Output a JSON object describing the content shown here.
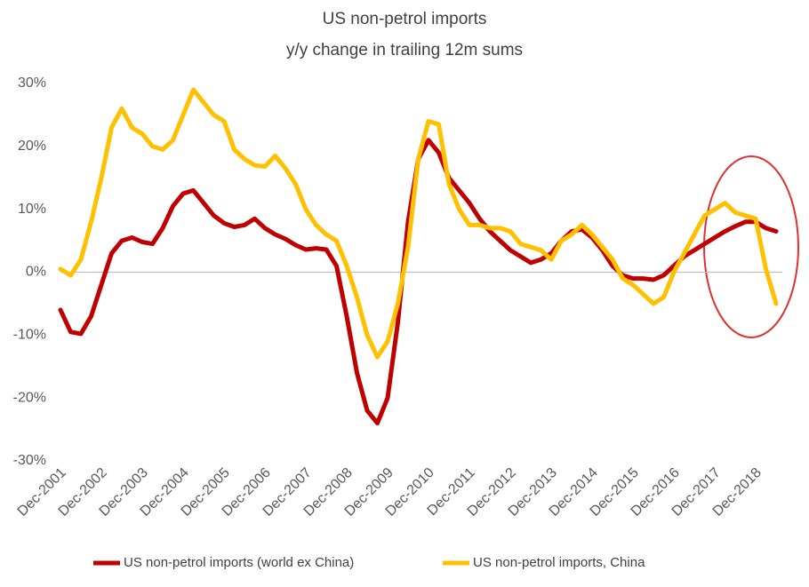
{
  "chart_data": {
    "type": "line",
    "title": "US non-petrol imports",
    "subtitle": "y/y change in trailing 12m sums",
    "categories": [
      "Dec-2001",
      null,
      null,
      null,
      "Dec-2002",
      null,
      null,
      null,
      "Dec-2003",
      null,
      null,
      null,
      "Dec-2004",
      null,
      null,
      null,
      "Dec-2005",
      null,
      null,
      null,
      "Dec-2006",
      null,
      null,
      null,
      "Dec-2007",
      null,
      null,
      null,
      "Dec-2008",
      null,
      null,
      null,
      "Dec-2009",
      null,
      null,
      null,
      "Dec-2010",
      null,
      null,
      null,
      "Dec-2011",
      null,
      null,
      null,
      "Dec-2012",
      null,
      null,
      null,
      "Dec-2013",
      null,
      null,
      null,
      "Dec-2014",
      null,
      null,
      null,
      "Dec-2015",
      null,
      null,
      null,
      "Dec-2016",
      null,
      null,
      null,
      "Dec-2017",
      null,
      null,
      null,
      "Dec-2018",
      null,
      null
    ],
    "series": [
      {
        "name": "US non-petrol imports (world ex China)",
        "color": "#c00000",
        "values": [
          -6,
          -9.5,
          -9.8,
          -7,
          -2,
          3,
          5,
          5.5,
          4.8,
          4.5,
          7,
          10.5,
          12.5,
          13,
          11,
          9,
          7.8,
          7.2,
          7.5,
          8.5,
          7,
          6,
          5.3,
          4.3,
          3.6,
          3.8,
          3.6,
          1,
          -7,
          -16,
          -22,
          -24,
          -20,
          -8,
          8,
          18,
          21,
          19,
          15,
          13,
          11,
          8.5,
          6.5,
          5,
          3.5,
          2.5,
          1.5,
          2,
          3,
          5,
          6.5,
          6.8,
          5.5,
          3.5,
          1,
          -0.5,
          -1,
          -1,
          -1.2,
          -0.5,
          1,
          2.5,
          3.5,
          4.5,
          5.5,
          6.5,
          7.3,
          8,
          8,
          7,
          6.5
        ]
      },
      {
        "name": "US non-petrol imports, China",
        "color": "#ffc000",
        "values": [
          0.5,
          -0.5,
          2,
          8,
          15,
          23,
          26,
          23,
          22,
          20,
          19.5,
          21,
          25,
          29,
          27,
          25,
          24,
          19.5,
          18,
          17,
          16.8,
          18.5,
          16.5,
          14,
          10,
          7.5,
          6,
          5,
          1,
          -4,
          -10,
          -13.5,
          -11,
          -5,
          4,
          18,
          24,
          23.5,
          14,
          10,
          7.5,
          7.5,
          7,
          7,
          6.5,
          4.5,
          4,
          3.5,
          2,
          5,
          6,
          7.5,
          6,
          4,
          2,
          -1,
          -2,
          -3.5,
          -5,
          -4,
          0,
          3,
          6,
          9,
          10,
          11,
          9.5,
          9,
          8.5,
          0.5,
          -5
        ]
      }
    ],
    "ylim": [
      -30,
      30
    ],
    "yticks": [
      {
        "value": -30,
        "label": "-30%"
      },
      {
        "value": -20,
        "label": "-20%"
      },
      {
        "value": -10,
        "label": "-10%"
      },
      {
        "value": 0,
        "label": "0%"
      },
      {
        "value": 10,
        "label": "10%"
      },
      {
        "value": 20,
        "label": "20%"
      },
      {
        "value": 30,
        "label": "30%"
      }
    ],
    "grid": false,
    "legend": "bottom"
  }
}
